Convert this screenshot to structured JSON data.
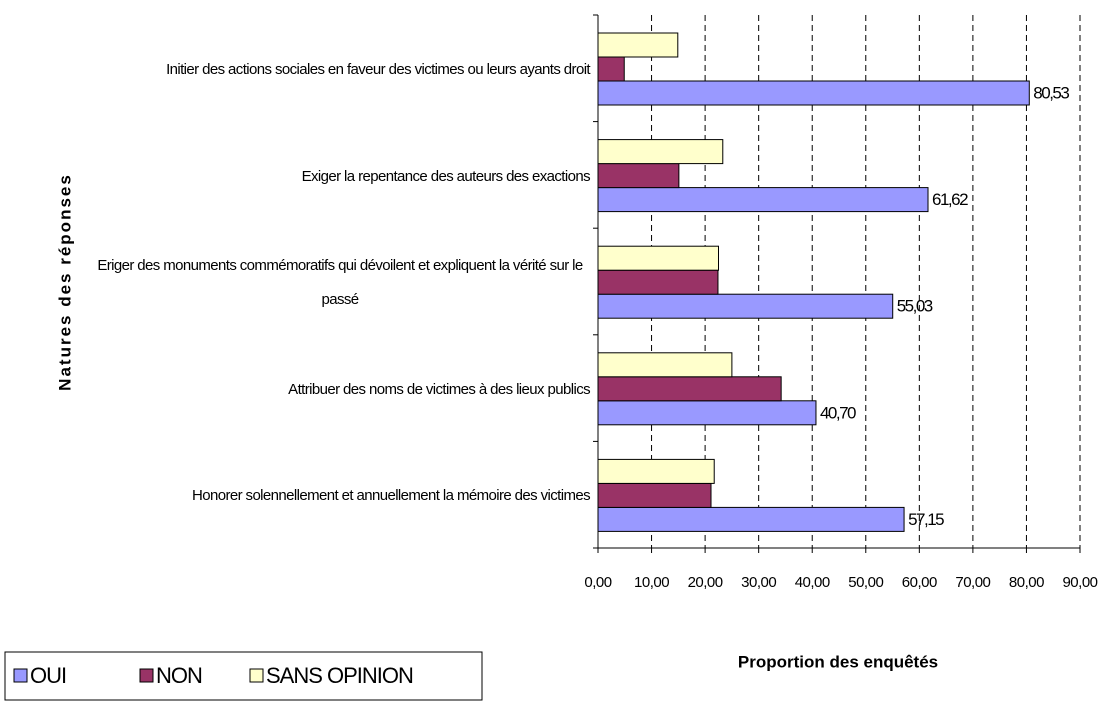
{
  "chart_data": {
    "type": "barh",
    "xlabel": "Proportion des enquêtés",
    "ylabel": "Natures des réponses",
    "categories": [
      "Initier des actions sociales en faveur des victimes ou leurs ayants droit",
      "Exiger la repentance des auteurs des exactions",
      "Eriger des monuments commémoratifs qui dévoilent et expliquent la vérité sur le passé",
      "Attribuer des noms de victimes à des lieux publics",
      "Honorer solennellement et annuellement la mémoire des victimes"
    ],
    "series": [
      {
        "name": "OUI",
        "color": "#9999ff",
        "values": [
          80.53,
          61.62,
          55.03,
          40.7,
          57.15
        ],
        "value_labels": [
          "80,53",
          "61,62",
          "55,03",
          "40,70",
          "57,15"
        ]
      },
      {
        "name": "NON",
        "color": "#993366",
        "values": [
          4.9,
          15.1,
          22.4,
          34.2,
          21.1
        ]
      },
      {
        "name": "SANS OPINION",
        "color": "#ffffcc",
        "values": [
          14.9,
          23.3,
          22.5,
          25.0,
          21.7
        ]
      }
    ],
    "xlim": [
      0,
      90
    ],
    "xticks": [
      {
        "value": 0,
        "label": "0,00"
      },
      {
        "value": 10,
        "label": "10,00"
      },
      {
        "value": 20,
        "label": "20,00"
      },
      {
        "value": 30,
        "label": "30,00"
      },
      {
        "value": 40,
        "label": "40,00"
      },
      {
        "value": 50,
        "label": "50,00"
      },
      {
        "value": 60,
        "label": "60,00"
      },
      {
        "value": 70,
        "label": "70,00"
      },
      {
        "value": 80,
        "label": "80,00"
      },
      {
        "value": 90,
        "label": "90,00"
      }
    ],
    "grid": true,
    "legend": "bottom-left"
  }
}
